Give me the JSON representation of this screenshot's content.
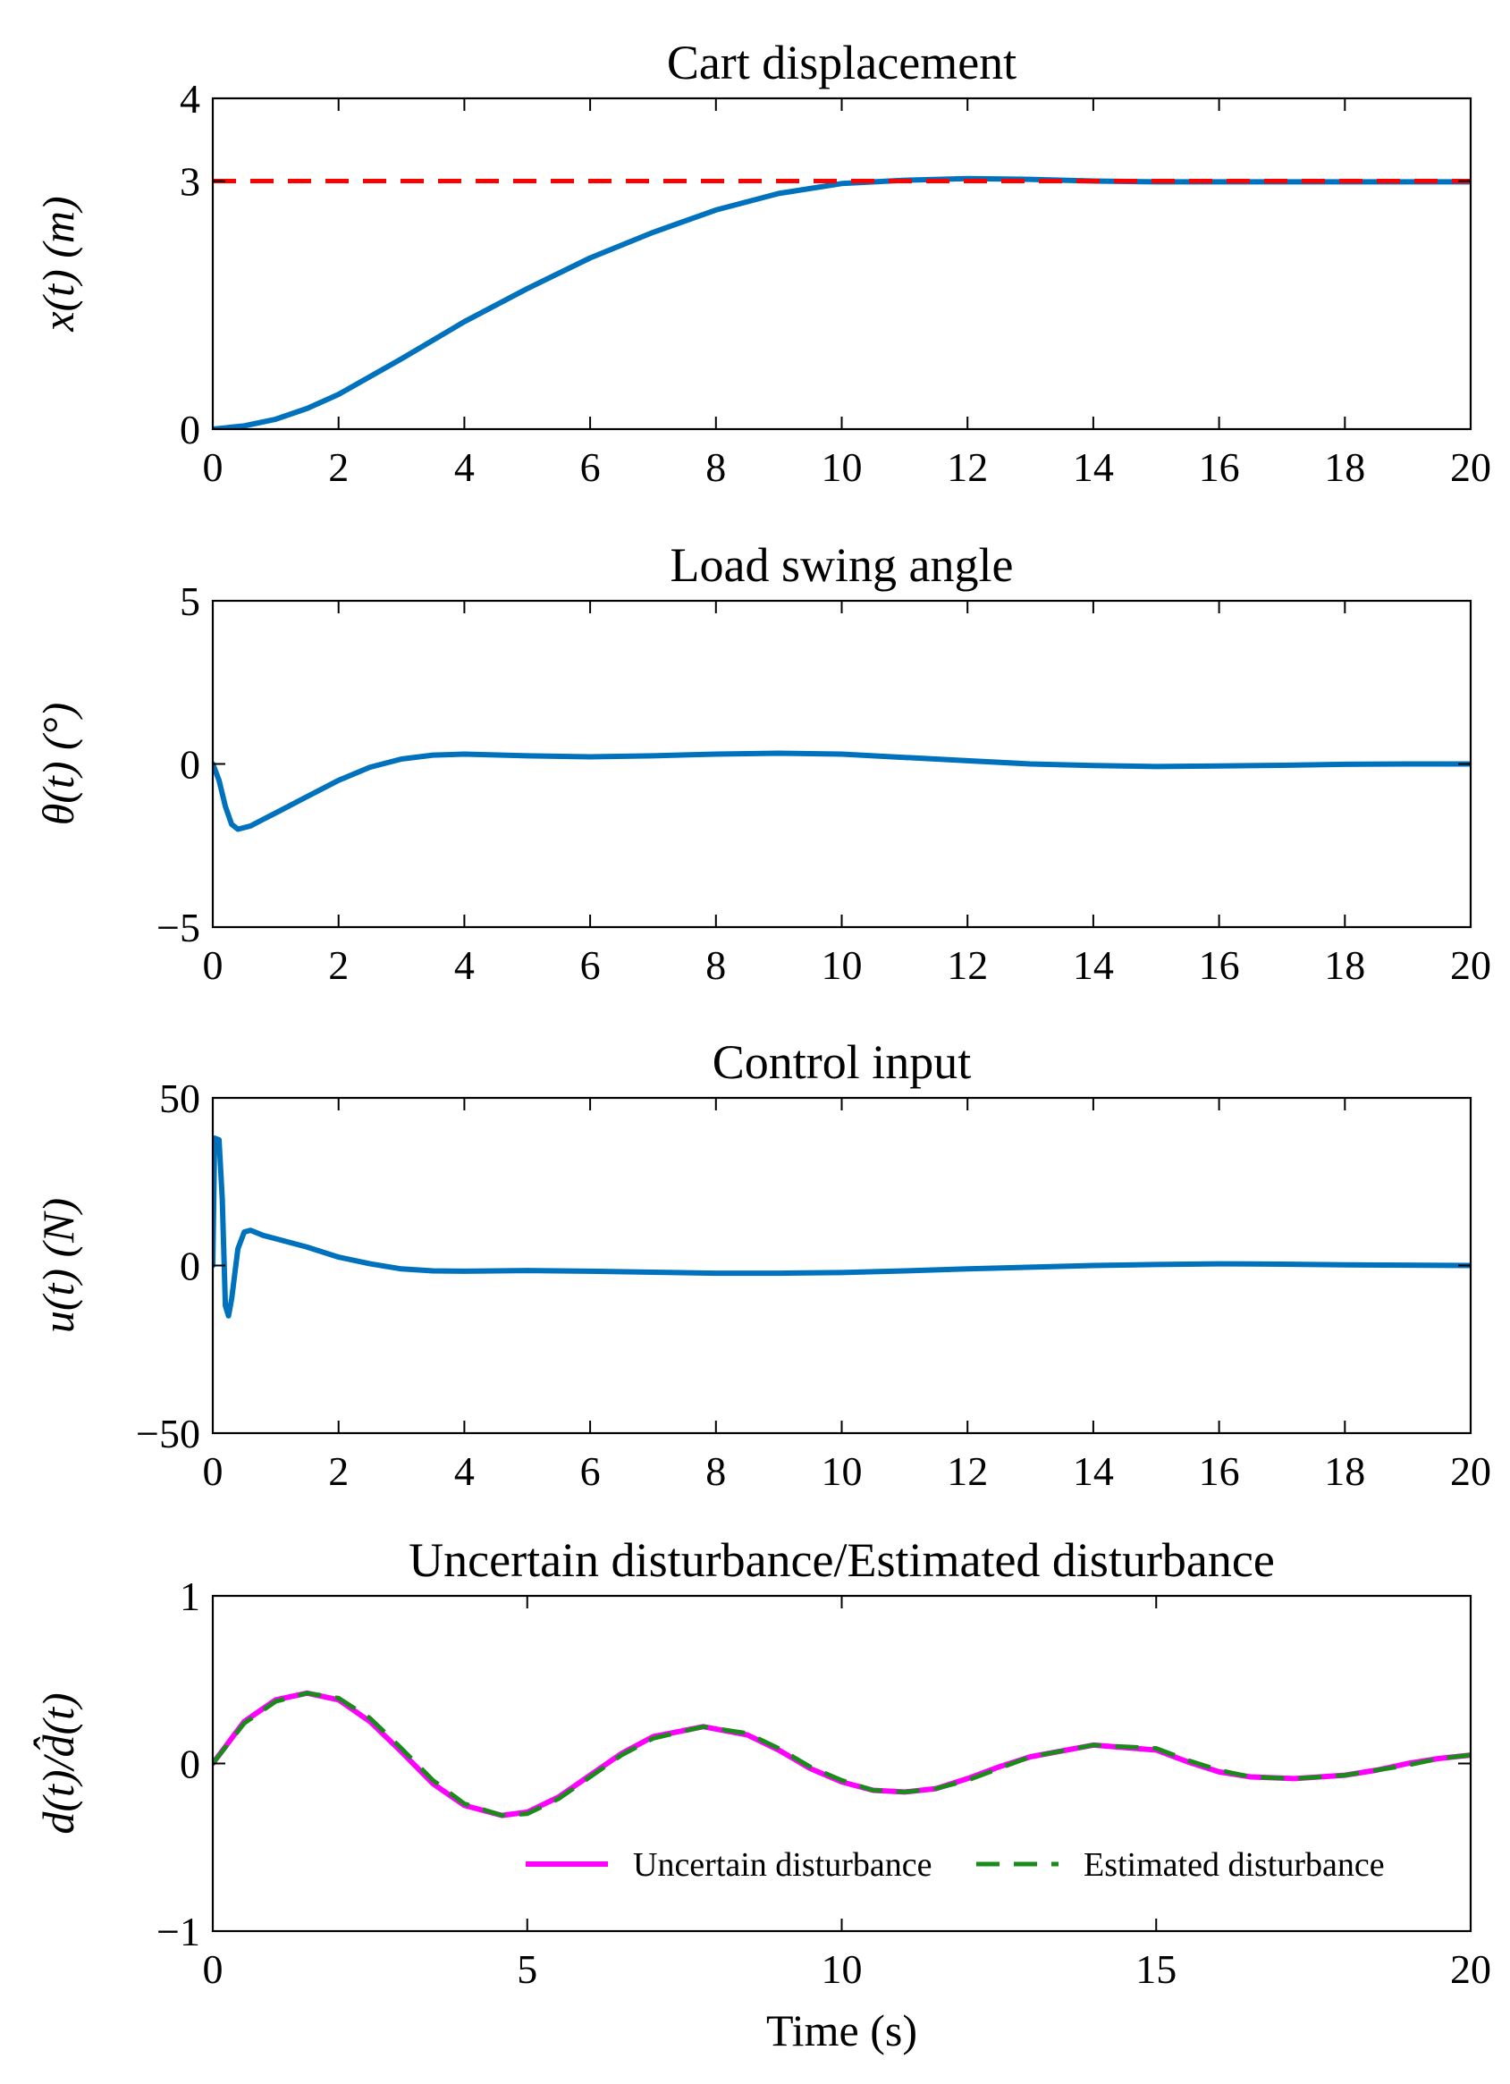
{
  "chart_data": [
    {
      "type": "line",
      "title": "Cart displacement",
      "ylabel": "x(t) (m)",
      "xlabel": "",
      "xlim": [
        0,
        20
      ],
      "ylim": [
        0,
        4
      ],
      "xticks": [
        0,
        2,
        4,
        6,
        8,
        10,
        12,
        14,
        16,
        18,
        20
      ],
      "yticks": [
        0,
        3,
        4
      ],
      "grid": false,
      "series": [
        {
          "color": "#0072BD",
          "style": "solid",
          "x": [
            0,
            0.5,
            1,
            1.5,
            2,
            3,
            4,
            5,
            6,
            7,
            8,
            9,
            10,
            11,
            12,
            13,
            14,
            15,
            16,
            17,
            18,
            19,
            20
          ],
          "y": [
            0,
            0.04,
            0.12,
            0.25,
            0.42,
            0.85,
            1.3,
            1.7,
            2.07,
            2.38,
            2.65,
            2.85,
            2.97,
            3.01,
            3.03,
            3.02,
            3.0,
            2.99,
            2.99,
            2.99,
            2.99,
            2.99,
            2.99
          ]
        },
        {
          "color": "#FF0000",
          "style": "dashed",
          "x": [
            0,
            20
          ],
          "y": [
            3,
            3
          ]
        }
      ]
    },
    {
      "type": "line",
      "title": "Load swing angle",
      "ylabel": "θ(t) (°)",
      "xlabel": "",
      "xlim": [
        0,
        20
      ],
      "ylim": [
        -5,
        5
      ],
      "xticks": [
        0,
        2,
        4,
        6,
        8,
        10,
        12,
        14,
        16,
        18,
        20
      ],
      "yticks": [
        -5,
        0,
        5
      ],
      "grid": false,
      "series": [
        {
          "color": "#0072BD",
          "style": "solid",
          "x": [
            0,
            0.1,
            0.2,
            0.3,
            0.4,
            0.6,
            0.8,
            1.0,
            1.5,
            2.0,
            2.5,
            3.0,
            3.5,
            4.0,
            5.0,
            6.0,
            7.0,
            8.0,
            9.0,
            10.0,
            11.0,
            12.0,
            13.0,
            14.0,
            15.0,
            16.0,
            17.0,
            18.0,
            19.0,
            20.0
          ],
          "y": [
            0,
            -0.5,
            -1.3,
            -1.85,
            -2.0,
            -1.9,
            -1.7,
            -1.5,
            -1.0,
            -0.5,
            -0.1,
            0.15,
            0.27,
            0.3,
            0.25,
            0.22,
            0.25,
            0.3,
            0.33,
            0.3,
            0.2,
            0.1,
            0.0,
            -0.05,
            -0.08,
            -0.06,
            -0.04,
            -0.01,
            0.0,
            0.0
          ]
        }
      ]
    },
    {
      "type": "line",
      "title": "Control input",
      "ylabel": "u(t) (N)",
      "xlabel": "",
      "xlim": [
        0,
        20
      ],
      "ylim": [
        -50,
        50
      ],
      "xticks": [
        0,
        2,
        4,
        6,
        8,
        10,
        12,
        14,
        16,
        18,
        20
      ],
      "yticks": [
        -50,
        0,
        50
      ],
      "grid": false,
      "series": [
        {
          "color": "#0072BD",
          "style": "solid",
          "x": [
            0,
            0.03,
            0.1,
            0.15,
            0.2,
            0.25,
            0.3,
            0.4,
            0.5,
            0.6,
            0.8,
            1.0,
            1.5,
            2.0,
            2.5,
            3.0,
            3.5,
            4.0,
            5.0,
            6.0,
            7.0,
            8.0,
            9.0,
            10.0,
            11.0,
            12.0,
            13.0,
            14.0,
            15.0,
            16.0,
            17.0,
            18.0,
            19.0,
            20.0
          ],
          "y": [
            0,
            38,
            37.5,
            20,
            -12,
            -15,
            -10,
            5,
            10,
            10.5,
            9,
            8,
            5.5,
            2.5,
            0.5,
            -1,
            -1.6,
            -1.7,
            -1.5,
            -1.7,
            -2,
            -2.3,
            -2.3,
            -2.1,
            -1.6,
            -1.0,
            -0.5,
            0,
            0.3,
            0.5,
            0.4,
            0.2,
            0.1,
            0
          ]
        }
      ]
    },
    {
      "type": "line",
      "title": "Uncertain disturbance/Estimated disturbance",
      "ylabel": "d(t)/d̂(t)",
      "xlabel": "Time (s)",
      "xlim": [
        0,
        20
      ],
      "ylim": [
        -1,
        1
      ],
      "xticks": [
        0,
        5,
        10,
        15,
        20
      ],
      "yticks": [
        -1,
        0,
        1
      ],
      "grid": false,
      "legend": "bottom-right",
      "series": [
        {
          "name": "Uncertain disturbance",
          "color": "#FF00FF",
          "style": "solid",
          "x": [
            0,
            0.5,
            1.0,
            1.5,
            2.0,
            2.5,
            3.0,
            3.5,
            4.0,
            4.6,
            5.0,
            5.5,
            6.0,
            6.5,
            7.0,
            7.8,
            8.5,
            9.0,
            9.5,
            10.0,
            10.5,
            11.0,
            11.5,
            12.0,
            12.5,
            13.0,
            14.0,
            15.0,
            15.5,
            16.0,
            16.5,
            17.2,
            18.0,
            18.5,
            19.0,
            19.5,
            20.0
          ],
          "y": [
            0,
            0.25,
            0.38,
            0.42,
            0.38,
            0.25,
            0.07,
            -0.12,
            -0.25,
            -0.31,
            -0.29,
            -0.2,
            -0.07,
            0.06,
            0.16,
            0.22,
            0.17,
            0.08,
            -0.03,
            -0.11,
            -0.16,
            -0.17,
            -0.15,
            -0.09,
            -0.02,
            0.04,
            0.11,
            0.08,
            0.01,
            -0.05,
            -0.08,
            -0.09,
            -0.07,
            -0.04,
            0.0,
            0.03,
            0.05
          ]
        },
        {
          "name": "Estimated disturbance",
          "color": "#1A8A1A",
          "style": "dashed",
          "x": [
            0,
            0.5,
            1.0,
            1.5,
            2.0,
            2.5,
            3.0,
            3.5,
            4.0,
            4.6,
            5.0,
            5.5,
            6.0,
            6.5,
            7.0,
            7.8,
            8.5,
            9.0,
            9.5,
            10.0,
            10.5,
            11.0,
            11.5,
            12.0,
            12.5,
            13.0,
            14.0,
            15.0,
            15.5,
            16.0,
            16.5,
            17.2,
            18.0,
            18.5,
            19.0,
            19.5,
            20.0
          ],
          "y": [
            0,
            0.24,
            0.37,
            0.42,
            0.39,
            0.27,
            0.09,
            -0.1,
            -0.24,
            -0.31,
            -0.3,
            -0.21,
            -0.08,
            0.05,
            0.15,
            0.22,
            0.18,
            0.09,
            -0.02,
            -0.1,
            -0.16,
            -0.17,
            -0.15,
            -0.1,
            -0.03,
            0.04,
            0.11,
            0.09,
            0.02,
            -0.04,
            -0.08,
            -0.09,
            -0.07,
            -0.04,
            -0.01,
            0.03,
            0.05
          ]
        }
      ]
    }
  ]
}
